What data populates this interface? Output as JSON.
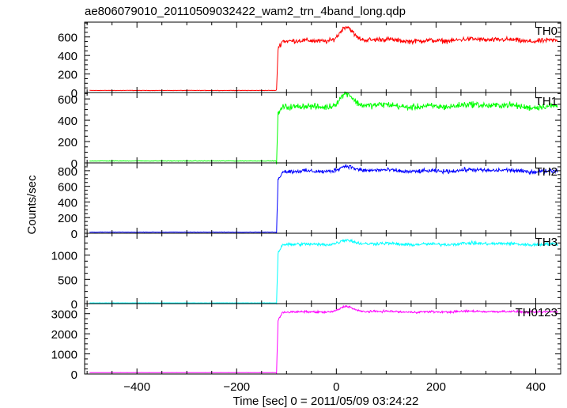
{
  "title": "ae806079010_20110509032422_wam2_trn_4band_long.qdp",
  "chart_data": {
    "type": "line",
    "title": "ae806079010_20110509032422_wam2_trn_4band_long.qdp",
    "xlabel": "Time [sec] 0 = 2011/05/09 03:24:22",
    "ylabel": "Counts/sec",
    "xlim": [
      -505,
      450
    ],
    "xticks": [
      -400,
      -200,
      0,
      200,
      400
    ],
    "grid": false,
    "shared_x": true,
    "trigger_time": -120,
    "panels": [
      {
        "name": "TH0",
        "color": "#ff0000",
        "ylim": [
          0,
          760
        ],
        "yticks": [
          0,
          200,
          400,
          600
        ],
        "pre_level": 22,
        "post_level": 565,
        "noise": 22,
        "peak": {
          "x": 20,
          "value": 700
        }
      },
      {
        "name": "TH1",
        "color": "#00ff00",
        "ylim": [
          0,
          660
        ],
        "yticks": [
          0,
          200,
          400,
          600
        ],
        "pre_level": 18,
        "post_level": 535,
        "noise": 25,
        "peak": {
          "x": 20,
          "value": 640
        }
      },
      {
        "name": "TH2",
        "color": "#0000ff",
        "ylim": [
          0,
          900
        ],
        "yticks": [
          0,
          200,
          400,
          600,
          800
        ],
        "pre_level": 15,
        "post_level": 800,
        "noise": 22,
        "peak": {
          "x": 20,
          "value": 850
        }
      },
      {
        "name": "TH3",
        "color": "#00ffff",
        "ylim": [
          0,
          1450
        ],
        "yticks": [
          0,
          500,
          1000
        ],
        "pre_level": 15,
        "post_level": 1230,
        "noise": 28,
        "peak": {
          "x": 20,
          "value": 1300
        }
      },
      {
        "name": "TH0123",
        "color": "#ff00ff",
        "ylim": [
          0,
          3500
        ],
        "yticks": [
          0,
          1000,
          2000,
          3000
        ],
        "pre_level": 70,
        "post_level": 3100,
        "noise": 45,
        "peak": {
          "x": 20,
          "value": 3350
        }
      }
    ]
  }
}
